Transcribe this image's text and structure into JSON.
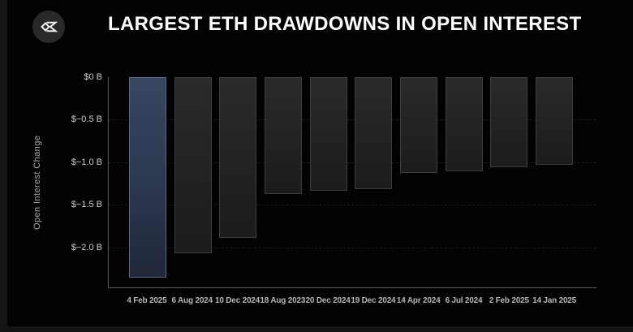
{
  "header": {
    "title": "LARGEST ETH DRAWDOWNS IN OPEN INTEREST",
    "logo_icon": "sigma-diamond-icon"
  },
  "chart_data": {
    "type": "bar",
    "title": "LARGEST ETH DRAWDOWNS IN OPEN INTEREST",
    "xlabel": "",
    "ylabel": "Open Interest Change",
    "unit": "billions USD",
    "categories": [
      "4 Feb 2025",
      "6 Aug 2024",
      "10 Dec 2024",
      "18 Aug 2023",
      "20 Dec 2024",
      "19 Dec 2024",
      "14 Apr 2024",
      "6 Jul 2024",
      "2 Feb 2025",
      "14 Jan 2025"
    ],
    "values": [
      -2.36,
      -2.07,
      -1.89,
      -1.37,
      -1.34,
      -1.32,
      -1.13,
      -1.11,
      -1.06,
      -1.03
    ],
    "ylim": [
      -2.48,
      0
    ],
    "yticks": [
      {
        "value": 0,
        "label": "$0 B"
      },
      {
        "value": -0.5,
        "label": "$−0.5 B"
      },
      {
        "value": -1.0,
        "label": "$−1.0 B"
      },
      {
        "value": -1.5,
        "label": "$−1.5 B"
      },
      {
        "value": -2.0,
        "label": "$−2.0 B"
      }
    ],
    "grid": "horizontal-dashed",
    "legend": "none",
    "highlight_index": 0,
    "colors": {
      "background": "#000000",
      "bar_default": "#242424",
      "bar_default_border": "#3d3d3d",
      "bar_highlight": "#2e3a54",
      "bar_highlight_border": "#56678c",
      "axis_line": "#565656",
      "gridline": "rgba(255,255,255,0.09)",
      "title_text": "#ffffff",
      "tick_text": "#cfcfcf",
      "x_label_text": "#b5b5b5"
    }
  }
}
